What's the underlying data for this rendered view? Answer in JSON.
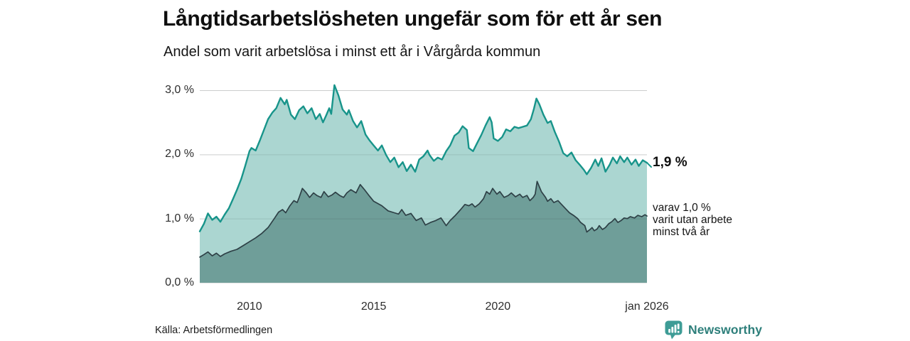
{
  "header": {
    "title": "Långtidsarbetslösheten ungefär som för ett år sen",
    "subtitle": "Andel som varit arbetslösa i minst ett år i Vårgårda kommun"
  },
  "chart_data": {
    "type": "area",
    "title": "Långtidsarbetslösheten ungefär som för ett år sen",
    "subtitle": "Andel som varit arbetslösa i minst ett år i Vårgårda kommun",
    "grid": "horizontal",
    "x_axis": {
      "range": [
        2008,
        2026
      ],
      "ticks": [
        {
          "label": "2010",
          "year": 2010
        },
        {
          "label": "2015",
          "year": 2015
        },
        {
          "label": "2020",
          "year": 2020
        },
        {
          "label": "jan 2026",
          "year": 2026
        }
      ]
    },
    "y_axis": {
      "unit": "%",
      "range": [
        0,
        3.0
      ],
      "ticks": [
        {
          "label": "0,0 %",
          "value": 0.0
        },
        {
          "label": "1,0 %",
          "value": 1.0
        },
        {
          "label": "2,0 %",
          "value": 2.0
        },
        {
          "label": "3,0 %",
          "value": 3.0
        }
      ]
    },
    "series": [
      {
        "name": "Arbetslösa minst ett år",
        "line_color": "#17948a",
        "fill_color": "#abd6d1",
        "end_label": "1,9 %",
        "end_value": 1.9,
        "points": [
          [
            2008.0,
            0.8
          ],
          [
            2008.17,
            0.92
          ],
          [
            2008.33,
            1.08
          ],
          [
            2008.5,
            0.98
          ],
          [
            2008.67,
            1.03
          ],
          [
            2008.83,
            0.95
          ],
          [
            2009.0,
            1.06
          ],
          [
            2009.17,
            1.16
          ],
          [
            2009.33,
            1.3
          ],
          [
            2009.5,
            1.45
          ],
          [
            2009.67,
            1.62
          ],
          [
            2009.83,
            1.82
          ],
          [
            2010.0,
            2.05
          ],
          [
            2010.08,
            2.1
          ],
          [
            2010.25,
            2.06
          ],
          [
            2010.42,
            2.22
          ],
          [
            2010.58,
            2.38
          ],
          [
            2010.75,
            2.55
          ],
          [
            2010.92,
            2.65
          ],
          [
            2011.08,
            2.72
          ],
          [
            2011.25,
            2.88
          ],
          [
            2011.42,
            2.78
          ],
          [
            2011.5,
            2.85
          ],
          [
            2011.67,
            2.62
          ],
          [
            2011.83,
            2.55
          ],
          [
            2012.0,
            2.69
          ],
          [
            2012.17,
            2.75
          ],
          [
            2012.33,
            2.64
          ],
          [
            2012.5,
            2.72
          ],
          [
            2012.67,
            2.55
          ],
          [
            2012.83,
            2.63
          ],
          [
            2012.96,
            2.5
          ],
          [
            2013.08,
            2.6
          ],
          [
            2013.21,
            2.72
          ],
          [
            2013.29,
            2.63
          ],
          [
            2013.42,
            3.08
          ],
          [
            2013.5,
            3.0
          ],
          [
            2013.58,
            2.92
          ],
          [
            2013.75,
            2.7
          ],
          [
            2013.92,
            2.62
          ],
          [
            2014.0,
            2.69
          ],
          [
            2014.17,
            2.52
          ],
          [
            2014.33,
            2.42
          ],
          [
            2014.5,
            2.52
          ],
          [
            2014.67,
            2.31
          ],
          [
            2014.83,
            2.22
          ],
          [
            2015.0,
            2.14
          ],
          [
            2015.17,
            2.06
          ],
          [
            2015.33,
            2.14
          ],
          [
            2015.5,
            1.99
          ],
          [
            2015.67,
            1.88
          ],
          [
            2015.83,
            1.95
          ],
          [
            2016.0,
            1.8
          ],
          [
            2016.17,
            1.88
          ],
          [
            2016.33,
            1.74
          ],
          [
            2016.5,
            1.84
          ],
          [
            2016.67,
            1.73
          ],
          [
            2016.83,
            1.92
          ],
          [
            2017.0,
            1.97
          ],
          [
            2017.17,
            2.06
          ],
          [
            2017.25,
            1.99
          ],
          [
            2017.42,
            1.9
          ],
          [
            2017.58,
            1.95
          ],
          [
            2017.75,
            1.92
          ],
          [
            2017.92,
            2.05
          ],
          [
            2018.08,
            2.14
          ],
          [
            2018.25,
            2.29
          ],
          [
            2018.42,
            2.34
          ],
          [
            2018.58,
            2.44
          ],
          [
            2018.75,
            2.38
          ],
          [
            2018.83,
            2.1
          ],
          [
            2019.0,
            2.05
          ],
          [
            2019.17,
            2.18
          ],
          [
            2019.33,
            2.3
          ],
          [
            2019.5,
            2.45
          ],
          [
            2019.67,
            2.58
          ],
          [
            2019.75,
            2.5
          ],
          [
            2019.83,
            2.25
          ],
          [
            2020.0,
            2.21
          ],
          [
            2020.17,
            2.27
          ],
          [
            2020.33,
            2.39
          ],
          [
            2020.5,
            2.36
          ],
          [
            2020.67,
            2.43
          ],
          [
            2020.83,
            2.41
          ],
          [
            2021.0,
            2.43
          ],
          [
            2021.17,
            2.45
          ],
          [
            2021.33,
            2.55
          ],
          [
            2021.45,
            2.71
          ],
          [
            2021.55,
            2.87
          ],
          [
            2021.67,
            2.78
          ],
          [
            2021.83,
            2.62
          ],
          [
            2022.0,
            2.49
          ],
          [
            2022.13,
            2.52
          ],
          [
            2022.29,
            2.35
          ],
          [
            2022.46,
            2.2
          ],
          [
            2022.63,
            2.02
          ],
          [
            2022.79,
            1.97
          ],
          [
            2022.96,
            2.03
          ],
          [
            2023.13,
            1.91
          ],
          [
            2023.29,
            1.84
          ],
          [
            2023.46,
            1.76
          ],
          [
            2023.58,
            1.69
          ],
          [
            2023.75,
            1.79
          ],
          [
            2023.92,
            1.92
          ],
          [
            2024.04,
            1.82
          ],
          [
            2024.17,
            1.94
          ],
          [
            2024.33,
            1.73
          ],
          [
            2024.5,
            1.84
          ],
          [
            2024.63,
            1.95
          ],
          [
            2024.79,
            1.86
          ],
          [
            2024.92,
            1.97
          ],
          [
            2025.08,
            1.88
          ],
          [
            2025.21,
            1.95
          ],
          [
            2025.38,
            1.84
          ],
          [
            2025.54,
            1.92
          ],
          [
            2025.67,
            1.82
          ],
          [
            2025.83,
            1.91
          ],
          [
            2026.0,
            1.87
          ]
        ]
      },
      {
        "name": "Varav arbetslösa minst två år",
        "line_color": "#2e4046",
        "fill_color": "#6f9e99",
        "end_label_lines": [
          "varav 1,0 %",
          "varit utan arbete",
          "minst två år"
        ],
        "end_value": 1.0,
        "points": [
          [
            2008.0,
            0.4
          ],
          [
            2008.17,
            0.44
          ],
          [
            2008.33,
            0.48
          ],
          [
            2008.5,
            0.42
          ],
          [
            2008.67,
            0.46
          ],
          [
            2008.83,
            0.41
          ],
          [
            2009.0,
            0.45
          ],
          [
            2009.25,
            0.49
          ],
          [
            2009.5,
            0.52
          ],
          [
            2009.75,
            0.58
          ],
          [
            2010.0,
            0.64
          ],
          [
            2010.25,
            0.7
          ],
          [
            2010.5,
            0.77
          ],
          [
            2010.75,
            0.86
          ],
          [
            2011.0,
            1.0
          ],
          [
            2011.17,
            1.1
          ],
          [
            2011.33,
            1.14
          ],
          [
            2011.46,
            1.09
          ],
          [
            2011.63,
            1.2
          ],
          [
            2011.79,
            1.28
          ],
          [
            2011.92,
            1.25
          ],
          [
            2012.0,
            1.33
          ],
          [
            2012.13,
            1.47
          ],
          [
            2012.29,
            1.4
          ],
          [
            2012.42,
            1.33
          ],
          [
            2012.58,
            1.4
          ],
          [
            2012.71,
            1.36
          ],
          [
            2012.88,
            1.33
          ],
          [
            2013.0,
            1.42
          ],
          [
            2013.17,
            1.34
          ],
          [
            2013.33,
            1.37
          ],
          [
            2013.46,
            1.41
          ],
          [
            2013.63,
            1.36
          ],
          [
            2013.79,
            1.33
          ],
          [
            2013.92,
            1.4
          ],
          [
            2014.08,
            1.45
          ],
          [
            2014.29,
            1.4
          ],
          [
            2014.46,
            1.53
          ],
          [
            2014.63,
            1.45
          ],
          [
            2014.83,
            1.35
          ],
          [
            2015.0,
            1.27
          ],
          [
            2015.33,
            1.2
          ],
          [
            2015.58,
            1.12
          ],
          [
            2015.83,
            1.09
          ],
          [
            2016.0,
            1.07
          ],
          [
            2016.13,
            1.14
          ],
          [
            2016.29,
            1.05
          ],
          [
            2016.5,
            1.08
          ],
          [
            2016.71,
            0.97
          ],
          [
            2016.92,
            1.01
          ],
          [
            2017.08,
            0.9
          ],
          [
            2017.29,
            0.94
          ],
          [
            2017.5,
            0.97
          ],
          [
            2017.71,
            1.01
          ],
          [
            2017.92,
            0.89
          ],
          [
            2018.08,
            0.97
          ],
          [
            2018.29,
            1.05
          ],
          [
            2018.5,
            1.14
          ],
          [
            2018.67,
            1.22
          ],
          [
            2018.83,
            1.2
          ],
          [
            2018.96,
            1.23
          ],
          [
            2019.08,
            1.18
          ],
          [
            2019.25,
            1.23
          ],
          [
            2019.42,
            1.31
          ],
          [
            2019.54,
            1.42
          ],
          [
            2019.67,
            1.38
          ],
          [
            2019.79,
            1.47
          ],
          [
            2019.96,
            1.38
          ],
          [
            2020.08,
            1.42
          ],
          [
            2020.25,
            1.33
          ],
          [
            2020.42,
            1.36
          ],
          [
            2020.54,
            1.4
          ],
          [
            2020.71,
            1.34
          ],
          [
            2020.88,
            1.38
          ],
          [
            2021.0,
            1.33
          ],
          [
            2021.17,
            1.36
          ],
          [
            2021.29,
            1.28
          ],
          [
            2021.42,
            1.33
          ],
          [
            2021.5,
            1.38
          ],
          [
            2021.58,
            1.58
          ],
          [
            2021.75,
            1.42
          ],
          [
            2021.92,
            1.33
          ],
          [
            2022.0,
            1.27
          ],
          [
            2022.13,
            1.31
          ],
          [
            2022.25,
            1.25
          ],
          [
            2022.42,
            1.28
          ],
          [
            2022.54,
            1.23
          ],
          [
            2022.71,
            1.16
          ],
          [
            2022.88,
            1.09
          ],
          [
            2023.04,
            1.05
          ],
          [
            2023.21,
            1.0
          ],
          [
            2023.33,
            0.94
          ],
          [
            2023.5,
            0.89
          ],
          [
            2023.58,
            0.79
          ],
          [
            2023.71,
            0.83
          ],
          [
            2023.79,
            0.86
          ],
          [
            2023.88,
            0.81
          ],
          [
            2024.0,
            0.84
          ],
          [
            2024.08,
            0.89
          ],
          [
            2024.21,
            0.83
          ],
          [
            2024.33,
            0.86
          ],
          [
            2024.46,
            0.92
          ],
          [
            2024.58,
            0.95
          ],
          [
            2024.71,
            1.0
          ],
          [
            2024.83,
            0.94
          ],
          [
            2024.96,
            0.97
          ],
          [
            2025.08,
            1.01
          ],
          [
            2025.21,
            1.0
          ],
          [
            2025.33,
            1.03
          ],
          [
            2025.5,
            1.01
          ],
          [
            2025.63,
            1.05
          ],
          [
            2025.79,
            1.03
          ],
          [
            2025.92,
            1.06
          ],
          [
            2026.0,
            1.04
          ]
        ]
      }
    ]
  },
  "footer": {
    "source": "Källa: Arbetsförmedlingen",
    "brand": "Newsworthy"
  },
  "colors": {
    "series1_line": "#17948a",
    "series1_fill": "#abd6d1",
    "series2_line": "#2e4046",
    "series2_fill": "#6f9e99",
    "gridline": "#e4e4e4",
    "brand_icon": "#3e9c96",
    "brand_text": "#2e7f7b"
  }
}
